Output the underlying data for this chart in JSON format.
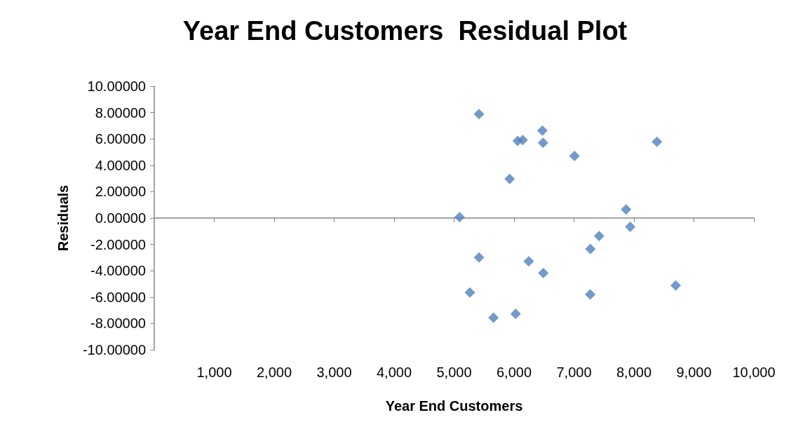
{
  "chart_data": {
    "type": "scatter",
    "title": "Year End Customers  Residual Plot",
    "xlabel": "Year End Customers",
    "ylabel": "Residuals",
    "marker": "diamond",
    "xlim": [
      0,
      10000
    ],
    "xticks": [
      {
        "value": 1000,
        "label": "1,000"
      },
      {
        "value": 2000,
        "label": "2,000"
      },
      {
        "value": 3000,
        "label": "3,000"
      },
      {
        "value": 4000,
        "label": "4,000"
      },
      {
        "value": 5000,
        "label": "5,000"
      },
      {
        "value": 6000,
        "label": "6,000"
      },
      {
        "value": 7000,
        "label": "7,000"
      },
      {
        "value": 8000,
        "label": "8,000"
      },
      {
        "value": 9000,
        "label": "9,000"
      },
      {
        "value": 10000,
        "label": "10,000"
      }
    ],
    "ylim": [
      -10,
      10
    ],
    "yticks": [
      {
        "value": -10,
        "label": "-10.00000"
      },
      {
        "value": -8,
        "label": "-8.00000"
      },
      {
        "value": -6,
        "label": "-6.00000"
      },
      {
        "value": -4,
        "label": "-4.00000"
      },
      {
        "value": -2,
        "label": "-2.00000"
      },
      {
        "value": 0,
        "label": "0.00000"
      },
      {
        "value": 2,
        "label": "2.00000"
      },
      {
        "value": 4,
        "label": "4.00000"
      },
      {
        "value": 6,
        "label": "6.00000"
      },
      {
        "value": 8,
        "label": "8.00000"
      },
      {
        "value": 10,
        "label": "10.00000"
      }
    ],
    "series": [
      {
        "color": "#4f81bd",
        "x": [
          5416,
          6061,
          6144,
          6473,
          6484,
          7007,
          8383,
          5927,
          7868,
          5092,
          7937,
          7419,
          7273,
          5416,
          6244,
          6488,
          5263,
          7270,
          8696,
          5657,
          6026
        ],
        "values": [
          7.88,
          5.85,
          5.92,
          6.63,
          5.7,
          4.71,
          5.78,
          2.96,
          0.65,
          0.07,
          -0.67,
          -1.37,
          -2.35,
          -2.99,
          -3.29,
          -4.17,
          -5.65,
          -5.8,
          -5.12,
          -7.57,
          -7.27
        ]
      }
    ]
  }
}
